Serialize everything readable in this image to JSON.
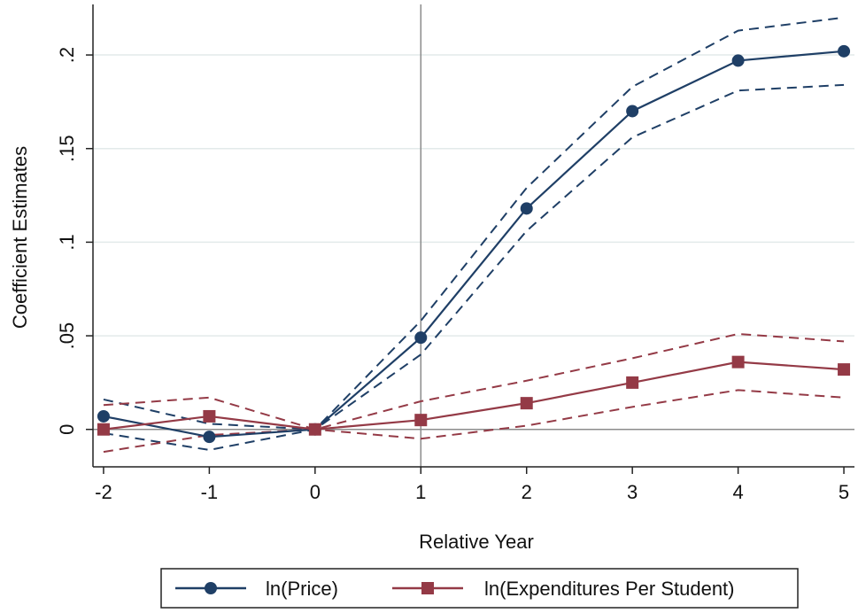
{
  "chart_data": {
    "type": "line",
    "xlabel": "Relative Year",
    "ylabel": "Coefficient Estimates",
    "x": [
      -2,
      -1,
      0,
      1,
      2,
      3,
      4,
      5
    ],
    "x_tick_labels": [
      "-2",
      "-1",
      "0",
      "1",
      "2",
      "3",
      "4",
      "5"
    ],
    "y_ticks": [
      0,
      0.05,
      0.1,
      0.15,
      0.2
    ],
    "y_tick_labels": [
      "0",
      ".05",
      ".1",
      ".15",
      ".2"
    ],
    "xlim": [
      -2.1,
      5.1
    ],
    "ylim": [
      -0.02,
      0.227
    ],
    "grid": "horizontal",
    "reference_lines": {
      "vertical_x": 1,
      "horizontal_y": 0
    },
    "legend_position": "bottom",
    "series": [
      {
        "name": "ln(Price)",
        "marker": "circle",
        "color": "#1f3f66",
        "values": [
          0.007,
          -0.004,
          0.0,
          0.049,
          0.118,
          0.17,
          0.197,
          0.202
        ],
        "ci_upper": [
          0.016,
          0.003,
          0.0,
          0.058,
          0.129,
          0.183,
          0.213,
          0.22
        ],
        "ci_lower": [
          -0.002,
          -0.011,
          0.0,
          0.04,
          0.106,
          0.156,
          0.181,
          0.184
        ]
      },
      {
        "name": "ln(Expenditures Per Student)",
        "marker": "square",
        "color": "#943a46",
        "values": [
          0.0,
          0.007,
          0.0,
          0.005,
          0.014,
          0.025,
          0.036,
          0.032
        ],
        "ci_upper": [
          0.013,
          0.017,
          0.0,
          0.015,
          0.026,
          0.038,
          0.051,
          0.047
        ],
        "ci_lower": [
          -0.012,
          -0.003,
          0.0,
          -0.005,
          0.002,
          0.012,
          0.021,
          0.017
        ]
      }
    ]
  }
}
